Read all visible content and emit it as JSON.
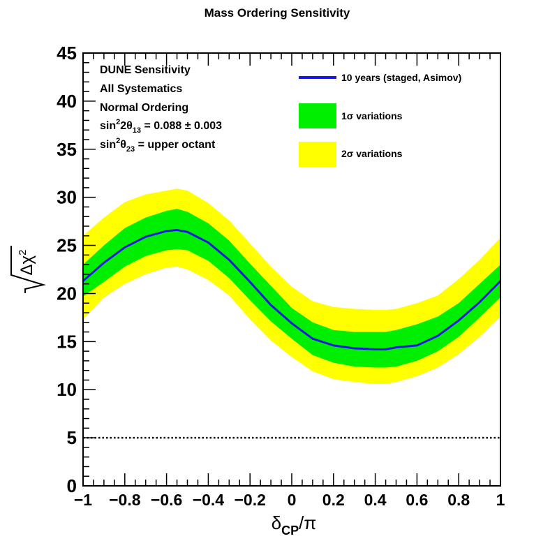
{
  "chart_data": {
    "type": "area",
    "title": "Mass Ordering Sensitivity",
    "xlabel": "δCP/π",
    "xlabel_main": "δ",
    "xlabel_sub": "CP",
    "xlabel_tail": "/π",
    "ylabel": "√Δχ²",
    "xlim": [
      -1,
      1
    ],
    "ylim": [
      0,
      45
    ],
    "x_ticks": [
      -1,
      -0.8,
      -0.6,
      -0.4,
      -0.2,
      0,
      0.2,
      0.4,
      0.6,
      0.8,
      1
    ],
    "x_tick_labels": [
      "−1",
      "−0.8",
      "−0.6",
      "−0.4",
      "−0.2",
      "0",
      "0.2",
      "0.4",
      "0.6",
      "0.8",
      "1"
    ],
    "y_ticks": [
      0,
      5,
      10,
      15,
      20,
      25,
      30,
      35,
      40,
      45
    ],
    "y_tick_labels": [
      "0",
      "5",
      "10",
      "15",
      "20",
      "25",
      "30",
      "35",
      "40",
      "45"
    ],
    "grid": false,
    "legend_position": "top-right",
    "annotation": {
      "line1": "DUNE Sensitivity",
      "line2": "All Systematics",
      "line3": "Normal Ordering",
      "line4": {
        "pre": "sin",
        "sup": "2",
        "mid": "2θ",
        "sub": "13",
        "post": " = 0.088 ± 0.003"
      },
      "line5": {
        "pre": "sin",
        "sup": "2",
        "mid": "θ",
        "sub": "23",
        "post": " = upper octant"
      }
    },
    "x": [
      -1,
      -0.9,
      -0.8,
      -0.7,
      -0.6,
      -0.55,
      -0.5,
      -0.4,
      -0.3,
      -0.2,
      -0.1,
      0,
      0.1,
      0.2,
      0.3,
      0.4,
      0.45,
      0.5,
      0.6,
      0.7,
      0.8,
      0.9,
      1
    ],
    "series": [
      {
        "name": "10 years (staged, Asimov)",
        "color": "#1a1adc",
        "values": [
          21.3,
          23.2,
          24.8,
          25.9,
          26.5,
          26.6,
          26.4,
          25.3,
          23.5,
          21.2,
          18.8,
          16.9,
          15.3,
          14.6,
          14.3,
          14.2,
          14.2,
          14.4,
          14.6,
          15.6,
          17.2,
          19.1,
          21.3
        ]
      }
    ],
    "bands": [
      {
        "name": "1σ variations",
        "label_main": "1σ",
        "label_rest": " variations",
        "color": "#00ee00",
        "lower": [
          19.7,
          21.2,
          22.8,
          23.9,
          24.5,
          24.6,
          24.5,
          23.4,
          21.6,
          19.3,
          17.1,
          15.3,
          13.6,
          12.8,
          12.4,
          12.3,
          12.3,
          12.4,
          13.0,
          14.0,
          15.5,
          17.5,
          19.6
        ],
        "upper": [
          23.0,
          25.0,
          26.8,
          27.9,
          28.6,
          28.8,
          28.5,
          27.3,
          25.5,
          23.1,
          20.8,
          18.5,
          17.0,
          16.2,
          16.0,
          16.0,
          16.0,
          16.2,
          16.8,
          17.6,
          19.0,
          21.0,
          23.0
        ]
      },
      {
        "name": "2σ variations",
        "label_main": "2σ",
        "label_rest": " variations",
        "color": "#ffff00",
        "lower": [
          17.3,
          19.6,
          21.0,
          22.0,
          22.7,
          22.8,
          22.5,
          21.4,
          19.8,
          17.3,
          15.1,
          13.4,
          11.9,
          11.1,
          10.8,
          10.6,
          10.6,
          10.8,
          11.4,
          12.3,
          13.7,
          15.5,
          17.6
        ],
        "upper": [
          26.0,
          27.9,
          29.5,
          30.3,
          30.7,
          30.9,
          30.7,
          29.4,
          27.6,
          25.2,
          22.8,
          20.7,
          19.2,
          18.6,
          18.4,
          18.3,
          18.3,
          18.4,
          19.0,
          19.8,
          21.5,
          23.5,
          25.8
        ]
      }
    ],
    "reference_line": {
      "y": 5,
      "style": "dotted",
      "color": "#000000"
    }
  }
}
